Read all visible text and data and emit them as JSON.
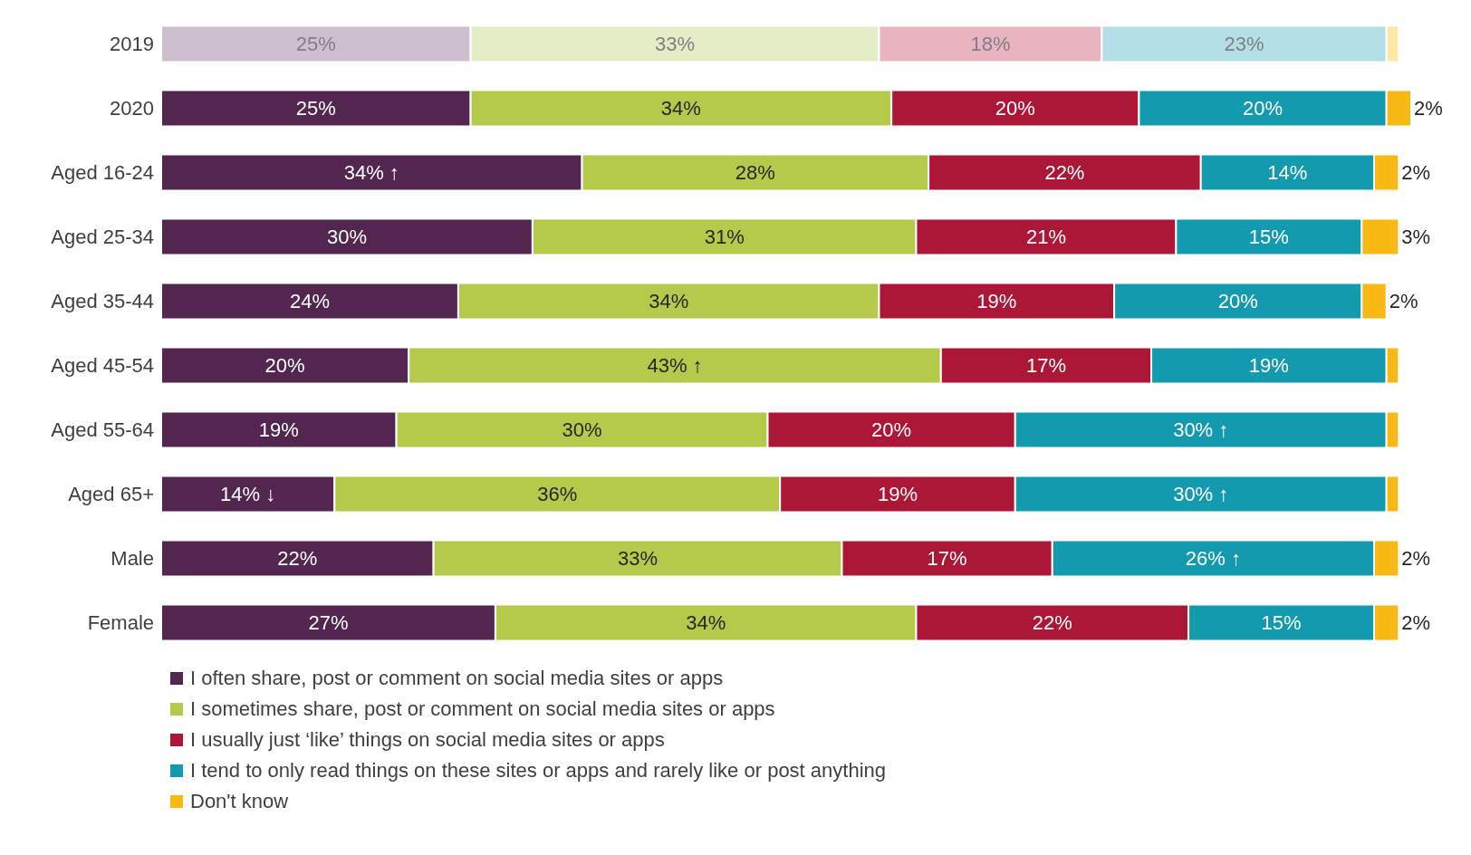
{
  "chart_data": {
    "type": "bar",
    "orientation": "horizontal",
    "stacked": true,
    "legend": "bottom left",
    "categories": [
      "2019",
      "2020",
      "Aged 16-24",
      "Aged 25-34",
      "Aged 35-44",
      "Aged 45-54",
      "Aged 55-64",
      "Aged 65+",
      "Male",
      "Female"
    ],
    "series": [
      {
        "name": "I often share, post or comment on social media sites or apps",
        "color": "#52264f",
        "colors": [
          "#cdbfcf",
          "#52264f",
          "#52264f",
          "#52264f",
          "#52264f",
          "#52264f",
          "#52264f",
          "#52264f",
          "#52264f",
          "#52264f"
        ],
        "values": [
          25,
          25,
          34,
          30,
          24,
          20,
          19,
          14,
          22,
          27
        ],
        "value_labels": [
          "25%",
          "25%",
          "34% ↑",
          "30%",
          "24%",
          "20%",
          "19%",
          "14% ↓",
          "22%",
          "27%"
        ]
      },
      {
        "name": "I sometimes share, post or comment on social media sites or apps",
        "color": "#b5c94b",
        "colors": [
          "#e5edc6",
          "#b5c94b",
          "#b5c94b",
          "#b5c94b",
          "#b5c94b",
          "#b5c94b",
          "#b5c94b",
          "#b5c94b",
          "#b5c94b",
          "#b5c94b"
        ],
        "values": [
          33,
          34,
          28,
          31,
          34,
          43,
          30,
          36,
          33,
          34
        ],
        "value_labels": [
          "33%",
          "34%",
          "28%",
          "31%",
          "34%",
          "43% ↑",
          "30%",
          "36%",
          "33%",
          "34%"
        ]
      },
      {
        "name": "I usually just ‘like’ things on social media sites or apps",
        "color": "#ad1737",
        "colors": [
          "#e8b4c0",
          "#ad1737",
          "#ad1737",
          "#ad1737",
          "#ad1737",
          "#ad1737",
          "#ad1737",
          "#ad1737",
          "#ad1737",
          "#ad1737"
        ],
        "values": [
          18,
          20,
          22,
          21,
          19,
          17,
          20,
          19,
          17,
          22
        ],
        "value_labels": [
          "18%",
          "20%",
          "22%",
          "21%",
          "19%",
          "17%",
          "20%",
          "19%",
          "17%",
          "22%"
        ]
      },
      {
        "name": "I tend to only read things on these sites or apps and rarely like or post anything",
        "color": "#139aae",
        "colors": [
          "#b3e0e6",
          "#139aae",
          "#139aae",
          "#139aae",
          "#139aae",
          "#139aae",
          "#139aae",
          "#139aae",
          "#139aae",
          "#139aae"
        ],
        "values": [
          23,
          20,
          14,
          15,
          20,
          19,
          30,
          30,
          26,
          15
        ],
        "value_labels": [
          "23%",
          "20%",
          "14%",
          "15%",
          "20%",
          "19%",
          "30% ↑",
          "30% ↑",
          "26% ↑",
          "15%"
        ]
      },
      {
        "name": "Don't know",
        "color": "#f9b914",
        "colors": [
          "#fde9a9",
          "#f9b914",
          "#f9b914",
          "#f9b914",
          "#f9b914",
          "#f9b914",
          "#f9b914",
          "#f9b914",
          "#f9b914",
          "#f9b914"
        ],
        "values": [
          1,
          2,
          2,
          3,
          2,
          1,
          1,
          1,
          2,
          2
        ],
        "value_labels": [
          null,
          "2%",
          "2%",
          "3%",
          "2%",
          null,
          null,
          null,
          "2%",
          "2%"
        ]
      }
    ]
  }
}
